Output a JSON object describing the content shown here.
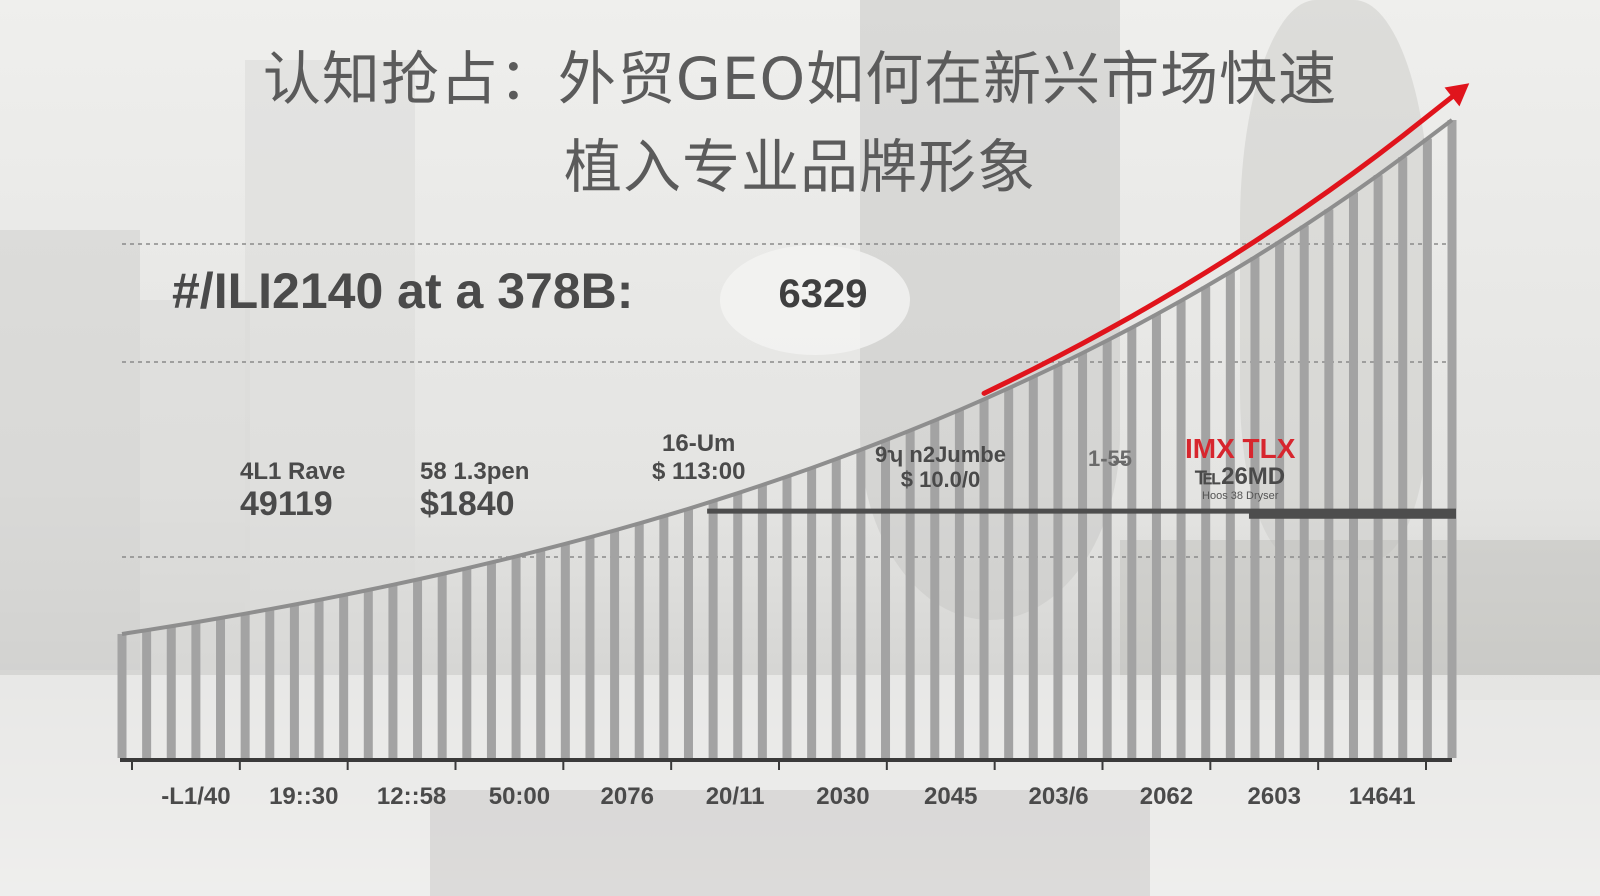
{
  "title": {
    "line1": "认知抢占：外贸GEO如何在新兴市场快速",
    "line2": "植入专业品牌形象"
  },
  "headline": {
    "text": "#/ILI2140 at a 378B:",
    "value": "6329"
  },
  "annotations": [
    {
      "label": "4L1 Rave",
      "value": "49119"
    },
    {
      "label": "58 1.3pen",
      "value": "$1840"
    },
    {
      "label": "16-Um",
      "value": "$ 113:00"
    },
    {
      "label": "9ʮ n2Jumbe",
      "value": "$ 10.0/0"
    },
    {
      "label": "1-5̶5",
      "value": ""
    },
    {
      "label": "IMX TLX",
      "value": "℡26MD",
      "sub": "Hoos 38 Dryser"
    }
  ],
  "colors": {
    "bars": "#a3a3a3",
    "curve": "#8e8e8e",
    "trend_arrow": "#e0141c",
    "reference_line": "#4d4d4d",
    "text": "#4a4a4a"
  },
  "chart_data": {
    "type": "bar",
    "x_tick_labels": [
      "-L1/40",
      "19::30",
      "12::58",
      "50:00",
      "2076",
      "20/11",
      "2030",
      "2045",
      "203/6",
      "2062",
      "2603",
      "14641"
    ],
    "values": [
      0.1944,
      0.2003,
      0.2065,
      0.2128,
      0.2194,
      0.2262,
      0.2332,
      0.2404,
      0.2478,
      0.2554,
      0.2633,
      0.2714,
      0.2798,
      0.2884,
      0.2973,
      0.3065,
      0.3159,
      0.3257,
      0.3357,
      0.346,
      0.3567,
      0.3677,
      0.379,
      0.3906,
      0.4027,
      0.4151,
      0.4279,
      0.441,
      0.4546,
      0.4686,
      0.4831,
      0.498,
      0.5133,
      0.5291,
      0.5454,
      0.5622,
      0.5796,
      0.5974,
      0.6158,
      0.6348,
      0.6544,
      0.6745,
      0.6953,
      0.7167,
      0.7388,
      0.7616,
      0.785,
      0.8092,
      0.8342,
      0.8599,
      0.8863,
      0.9136,
      0.9418,
      0.9708,
      1.0
    ],
    "ylim": [
      0,
      1
    ],
    "grid": "dashed horizontal",
    "trend_arrow": {
      "from_index": 35,
      "to_index": 54
    },
    "reference_lines": [
      {
        "from_index": 24,
        "to_index": 54,
        "value": 0.387
      },
      {
        "from_index": 46,
        "to_index": 54,
        "value": 0.382
      }
    ]
  }
}
